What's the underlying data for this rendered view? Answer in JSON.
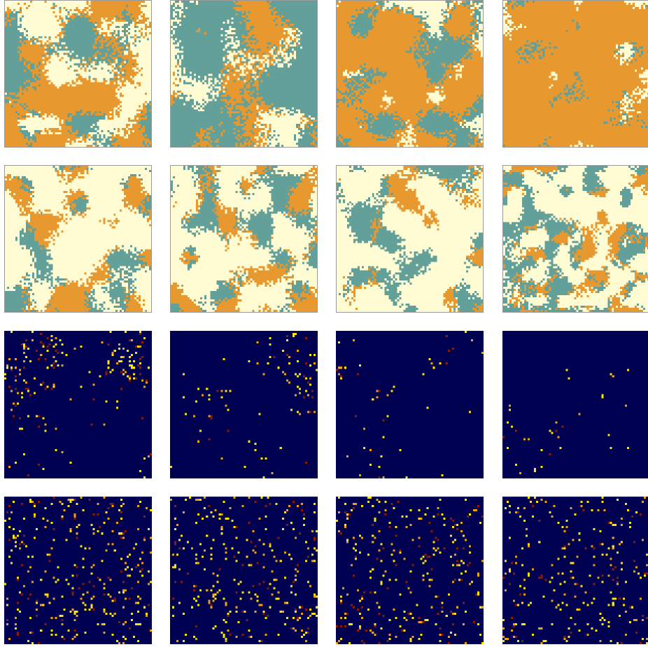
{
  "figure": {
    "rows": [
      {
        "kind": "three-state-lattice",
        "colors": {
          "a": "#FFFBD3",
          "b": "#E7982E",
          "c": "#64A09A"
        },
        "panels": [
          {
            "seed": 11,
            "fractions": [
              0.34,
              0.42,
              0.24
            ],
            "grain": 4
          },
          {
            "seed": 23,
            "fractions": [
              0.18,
              0.22,
              0.6
            ],
            "grain": 5
          },
          {
            "seed": 37,
            "fractions": [
              0.1,
              0.6,
              0.3
            ],
            "grain": 4
          },
          {
            "seed": 41,
            "fractions": [
              0.05,
              0.9,
              0.05
            ],
            "grain": 4
          }
        ]
      },
      {
        "kind": "three-state-lattice",
        "colors": {
          "a": "#FFFBD3",
          "b": "#E7982E",
          "c": "#64A09A"
        },
        "panels": [
          {
            "seed": 53,
            "fractions": [
              0.62,
              0.2,
              0.18
            ],
            "grain": 3
          },
          {
            "seed": 67,
            "fractions": [
              0.56,
              0.2,
              0.24
            ],
            "grain": 3
          },
          {
            "seed": 71,
            "fractions": [
              0.66,
              0.12,
              0.22
            ],
            "grain": 3
          },
          {
            "seed": 83,
            "fractions": [
              0.54,
              0.18,
              0.28
            ],
            "grain": 2
          }
        ]
      },
      {
        "kind": "sparse-activity-map",
        "colors": {
          "background": "#000050",
          "hot": "#FFE600",
          "warm": "#F0A010",
          "dim": "#8B1A0A"
        },
        "panels": [
          {
            "seed": 97,
            "count": 220,
            "clustered": true
          },
          {
            "seed": 101,
            "count": 110,
            "clustered": true
          },
          {
            "seed": 113,
            "count": 60,
            "clustered": true
          },
          {
            "seed": 127,
            "count": 40,
            "clustered": true
          }
        ]
      },
      {
        "kind": "sparse-activity-map",
        "colors": {
          "background": "#000050",
          "hot": "#FFE600",
          "warm": "#F0A010",
          "dim": "#8B1A0A"
        },
        "panels": [
          {
            "seed": 131,
            "count": 330,
            "clustered": false
          },
          {
            "seed": 137,
            "count": 300,
            "clustered": false
          },
          {
            "seed": 149,
            "count": 300,
            "clustered": false
          },
          {
            "seed": 151,
            "count": 260,
            "clustered": false
          }
        ]
      }
    ]
  }
}
